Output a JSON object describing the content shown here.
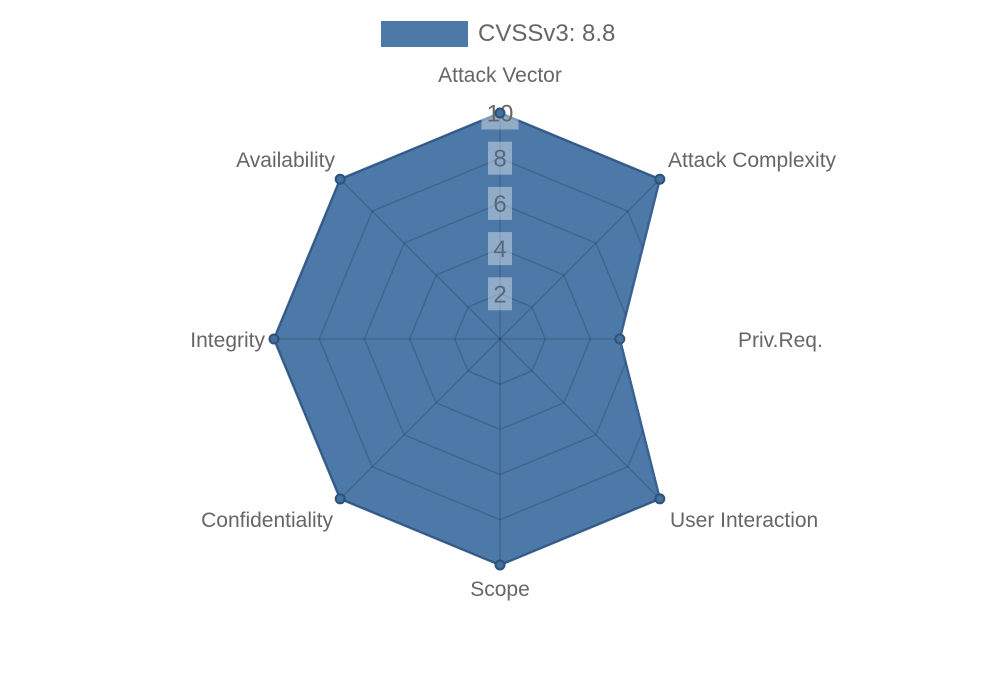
{
  "legend": {
    "label": "CVSSv3: 8.8",
    "swatch_color": "#4d79a8",
    "position": "top"
  },
  "chart_data": {
    "type": "radar",
    "categories": [
      "Attack Vector",
      "Attack Complexity",
      "Priv.Req.",
      "User Interaction",
      "Scope",
      "Confidentiality",
      "Integrity",
      "Availability"
    ],
    "series": [
      {
        "name": "CVSSv3: 8.8",
        "values": [
          10,
          10,
          5.3,
          10,
          10,
          10,
          10,
          10
        ]
      }
    ],
    "ticks": [
      "2",
      "4",
      "6",
      "8",
      "10"
    ],
    "rmin": 0,
    "rmax": 10,
    "grid": "octagonal web, 5 rings + 8 spokes, visible only over filled polygon",
    "legend_position": "top",
    "colors": {
      "fill": "#4d79a8",
      "border": "#3a6292",
      "point_fill": "#44709e",
      "point_border": "#2e527a",
      "grid_line": "rgba(0,0,0,0.15)",
      "tick_text_over_fill": "#57687e",
      "tick_text": "#666666",
      "tick_backdrop": "rgba(255,255,255,0.38)",
      "axis_label": "#666666"
    }
  }
}
